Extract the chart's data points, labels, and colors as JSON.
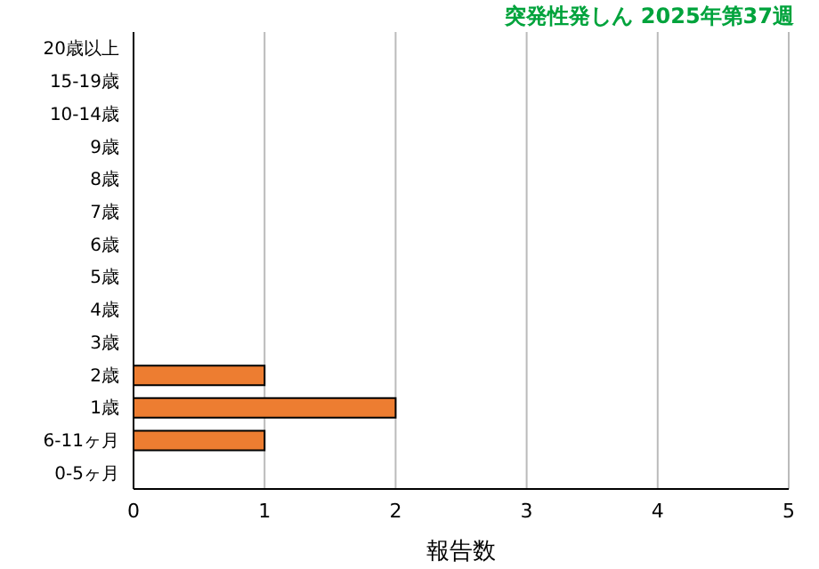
{
  "chart_data": {
    "type": "bar",
    "orientation": "horizontal",
    "title": "突発性発しん 2025年第37週",
    "xlabel": "報告数",
    "categories": [
      "20歳以上",
      "15-19歳",
      "10-14歳",
      "9歳",
      "8歳",
      "7歳",
      "6歳",
      "5歳",
      "4歳",
      "3歳",
      "2歳",
      "1歳",
      "6-11ヶ月",
      "0-5ヶ月"
    ],
    "values": [
      0,
      0,
      0,
      0,
      0,
      0,
      0,
      0,
      0,
      0,
      1,
      2,
      1,
      0
    ],
    "color": "#ed7d31",
    "xlim": [
      0,
      5
    ],
    "xticks": [
      0,
      1,
      2,
      3,
      4,
      5
    ],
    "grid": "x"
  }
}
